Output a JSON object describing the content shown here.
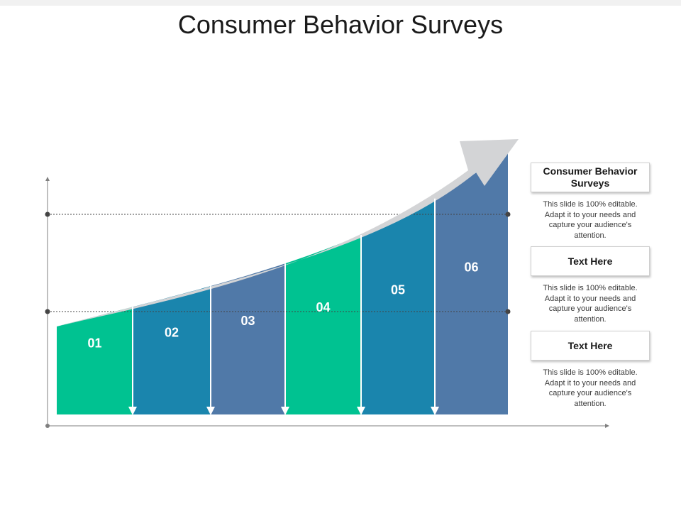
{
  "title": "Consumer Behavior Surveys",
  "segments": [
    {
      "label": "01",
      "color": "#00c291"
    },
    {
      "label": "02",
      "color": "#1a85ad"
    },
    {
      "label": "03",
      "color": "#5079a8"
    },
    {
      "label": "04",
      "color": "#00c291"
    },
    {
      "label": "05",
      "color": "#1a85ad"
    },
    {
      "label": "06",
      "color": "#5079a8"
    }
  ],
  "arrow_color": "#d3d4d6",
  "axis_color": "#7f7f7f",
  "boxes": [
    {
      "title": "Consumer Behavior Surveys",
      "text": "This slide is 100% editable. Adapt it to your needs and capture your audience's attention."
    },
    {
      "title": "Text Here",
      "text": "This slide is 100% editable. Adapt it to your needs and capture your audience's attention."
    },
    {
      "title": "Text Here",
      "text": "This slide is 100% editable. Adapt it to your needs and capture your audience's attention."
    }
  ]
}
